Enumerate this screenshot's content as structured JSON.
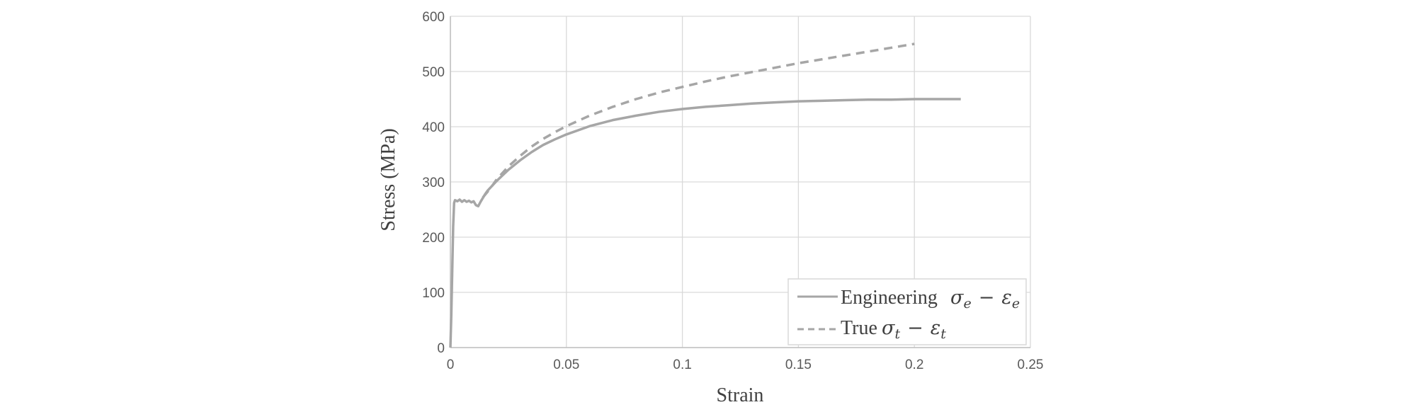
{
  "chart_data": {
    "type": "line",
    "xlabel": "Strain",
    "ylabel": "Stress (MPa)",
    "xlim": [
      0,
      0.25
    ],
    "ylim": [
      0,
      600
    ],
    "x_ticks": [
      "0",
      "0.05",
      "0.1",
      "0.15",
      "0.2",
      "0.25"
    ],
    "y_ticks": [
      "0",
      "100",
      "200",
      "300",
      "400",
      "500",
      "600"
    ],
    "grid": true,
    "legend_position": "bottom-right",
    "series_color": "#a6a6a6",
    "series": [
      {
        "name": "Engineering",
        "legend_math": "σe − εe",
        "legend_symbol": "σ",
        "legend_sub1": "e",
        "legend_minus": "−",
        "legend_symbol2": "ε",
        "legend_sub2": "e",
        "style": "solid",
        "x": [
          0,
          0.0004,
          0.0008,
          0.0012,
          0.0016,
          0.002,
          0.003,
          0.004,
          0.005,
          0.006,
          0.007,
          0.008,
          0.009,
          0.01,
          0.011,
          0.012,
          0.013,
          0.014,
          0.015,
          0.016,
          0.018,
          0.02,
          0.025,
          0.03,
          0.035,
          0.04,
          0.045,
          0.05,
          0.06,
          0.07,
          0.08,
          0.09,
          0.1,
          0.11,
          0.12,
          0.13,
          0.14,
          0.15,
          0.16,
          0.17,
          0.18,
          0.19,
          0.2,
          0.21,
          0.22
        ],
        "y": [
          0,
          60,
          140,
          220,
          262,
          267,
          265,
          268,
          264,
          267,
          264,
          266,
          263,
          265,
          258,
          256,
          264,
          271,
          278,
          284,
          293,
          302,
          322,
          339,
          354,
          367,
          377,
          386,
          401,
          412,
          420,
          427,
          432,
          436,
          439,
          442,
          444,
          446,
          447,
          448,
          449,
          449,
          450,
          450,
          450
        ]
      },
      {
        "name": "True",
        "legend_math": "σt − εt",
        "legend_symbol": "σ",
        "legend_sub1": "t",
        "legend_minus": "−",
        "legend_symbol2": "ε",
        "legend_sub2": "t",
        "style": "dashed",
        "x": [
          0.014,
          0.016,
          0.018,
          0.02,
          0.025,
          0.03,
          0.035,
          0.04,
          0.045,
          0.05,
          0.06,
          0.07,
          0.08,
          0.09,
          0.1,
          0.11,
          0.12,
          0.13,
          0.14,
          0.15,
          0.16,
          0.17,
          0.18,
          0.19,
          0.2
        ],
        "y": [
          272,
          282,
          293,
          305,
          328,
          347,
          364,
          378,
          390,
          401,
          420,
          436,
          450,
          462,
          472,
          482,
          491,
          499,
          507,
          515,
          522,
          529,
          536,
          543,
          550
        ]
      }
    ]
  }
}
